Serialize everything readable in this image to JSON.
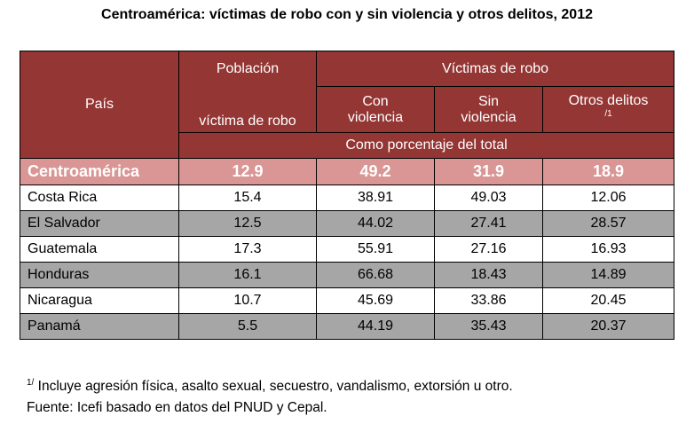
{
  "title": "Centroamérica: víctimas de robo con y sin violencia y otros delitos, 2012",
  "header": {
    "pais": "País",
    "poblacion_1": "Población",
    "poblacion_2": "víctima de robo",
    "victimas": "Víctimas de robo",
    "con_1": "Con",
    "con_2": "violencia",
    "sin_1": "Sin",
    "sin_2": "violencia",
    "otros": "Otros delitos",
    "otros_note": "/1",
    "unit": "Como porcentaje del total"
  },
  "total": {
    "pais": "Centroamérica",
    "poblacion": "12.9",
    "con": "49.2",
    "sin": "31.9",
    "otros": "18.9"
  },
  "rows": [
    {
      "pais": "Costa Rica",
      "poblacion": "15.4",
      "con": "38.91",
      "sin": "49.03",
      "otros": "12.06"
    },
    {
      "pais": "El Salvador",
      "poblacion": "12.5",
      "con": "44.02",
      "sin": "27.41",
      "otros": "28.57"
    },
    {
      "pais": "Guatemala",
      "poblacion": "17.3",
      "con": "55.91",
      "sin": "27.16",
      "otros": "16.93"
    },
    {
      "pais": "Honduras",
      "poblacion": "16.1",
      "con": "66.68",
      "sin": "18.43",
      "otros": "14.89"
    },
    {
      "pais": "Nicaragua",
      "poblacion": "10.7",
      "con": "45.69",
      "sin": "33.86",
      "otros": "20.45"
    },
    {
      "pais": "Panamá",
      "poblacion": "5.5",
      "con": "44.19",
      "sin": "35.43",
      "otros": "20.37"
    }
  ],
  "notes": {
    "mark": "1/",
    "note1": " Incluye agresión física, asalto sexual, secuestro, vandalismo, extorsión u otro.",
    "source": "Fuente: Icefi basado en datos del PNUD y Cepal."
  },
  "colors": {
    "header": "#943634",
    "total_row": "#d99694",
    "alt_row": "#a6a6a6"
  }
}
